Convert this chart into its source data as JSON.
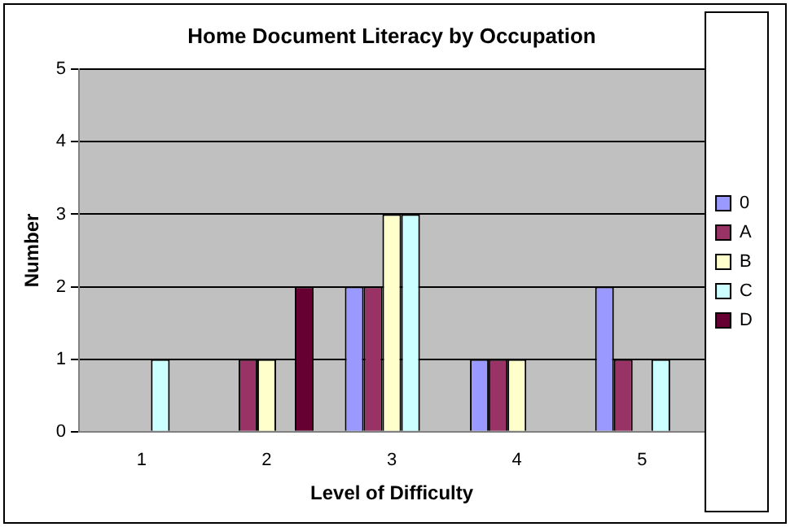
{
  "chart_data": {
    "type": "bar",
    "title": "Home Document Literacy by Occupation",
    "xlabel": "Level of Difficulty",
    "ylabel": "Number",
    "categories": [
      "1",
      "2",
      "3",
      "4",
      "5"
    ],
    "series": [
      {
        "name": "0",
        "color": "#9999ff",
        "values": [
          0,
          0,
          2,
          1,
          2
        ]
      },
      {
        "name": "A",
        "color": "#993366",
        "values": [
          0,
          1,
          2,
          1,
          1
        ]
      },
      {
        "name": "B",
        "color": "#ffffcc",
        "values": [
          0,
          1,
          3,
          1,
          0
        ]
      },
      {
        "name": "C",
        "color": "#ccffff",
        "values": [
          1,
          0,
          3,
          0,
          1
        ]
      },
      {
        "name": "D",
        "color": "#660033",
        "values": [
          0,
          2,
          0,
          0,
          0
        ]
      }
    ],
    "ylim": [
      0,
      5
    ],
    "yticks": [
      0,
      1,
      2,
      3,
      4,
      5
    ],
    "grid": "y",
    "legend": "right"
  }
}
